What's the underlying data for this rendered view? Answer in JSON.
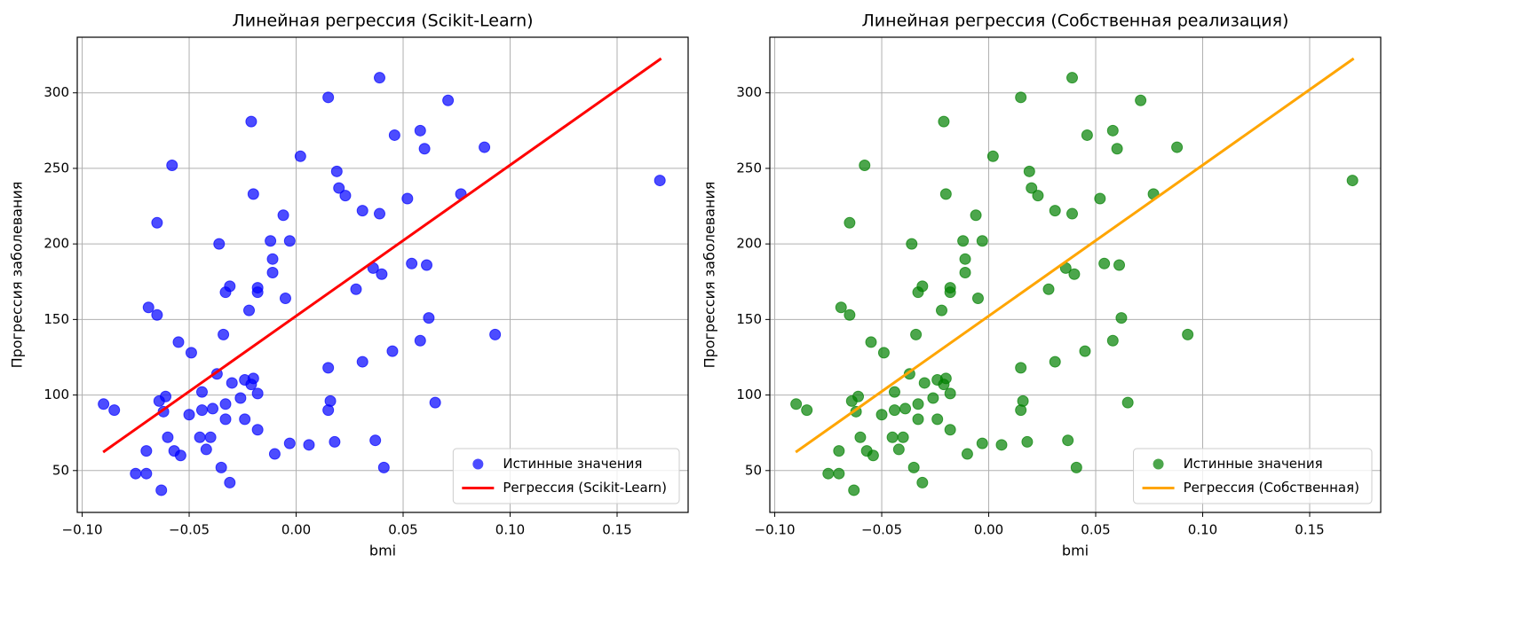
{
  "chart_data": [
    {
      "type": "scatter",
      "title": "Линейная регрессия (Scikit-Learn)",
      "x_label": "bmi",
      "y_label": "Прогрессия заболевания",
      "xlim": [
        -0.1023,
        0.1832
      ],
      "ylim": [
        22.3,
        336.8
      ],
      "xticks": [
        {
          "value": -0.1,
          "label": "−0.10"
        },
        {
          "value": -0.05,
          "label": "−0.05"
        },
        {
          "value": 0,
          "label": "0.00"
        },
        {
          "value": 0.05,
          "label": "0.05"
        },
        {
          "value": 0.1,
          "label": "0.10"
        },
        {
          "value": 0.15,
          "label": "0.15"
        }
      ],
      "yticks": [
        50,
        100,
        150,
        200,
        250,
        300
      ],
      "grid": true,
      "legend": "lower right",
      "series": [
        {
          "name": "Истинные значения",
          "type": "scatter",
          "color": "#0000ff",
          "x": [
            -0.09,
            -0.085,
            -0.075,
            -0.07,
            -0.07,
            -0.069,
            -0.065,
            -0.065,
            -0.064,
            -0.063,
            -0.061,
            -0.062,
            -0.06,
            -0.057,
            -0.058,
            -0.055,
            -0.054,
            -0.05,
            -0.049,
            -0.045,
            -0.044,
            -0.044,
            -0.042,
            -0.04,
            -0.039,
            -0.037,
            -0.036,
            -0.035,
            -0.034,
            -0.033,
            -0.033,
            -0.033,
            -0.031,
            -0.03,
            -0.031,
            -0.026,
            -0.024,
            -0.024,
            -0.021,
            -0.02,
            -0.022,
            -0.021,
            -0.02,
            -0.018,
            -0.018,
            -0.018,
            -0.018,
            -0.012,
            -0.011,
            -0.011,
            -0.01,
            -0.006,
            -0.005,
            -0.003,
            -0.003,
            0.002,
            0.006,
            0.015,
            0.015,
            0.016,
            0.015,
            0.018,
            0.019,
            0.02,
            0.023,
            0.028,
            0.031,
            0.031,
            0.036,
            0.037,
            0.039,
            0.04,
            0.039,
            0.041,
            0.045,
            0.046,
            0.052,
            0.054,
            0.058,
            0.058,
            0.06,
            0.061,
            0.062,
            0.065,
            0.071,
            0.077,
            0.088,
            0.093,
            0.17
          ],
          "values": [
            94,
            90,
            48,
            48,
            63,
            158,
            153,
            214,
            96,
            37,
            99,
            89,
            72,
            63,
            252,
            135,
            60,
            87,
            128,
            72,
            102,
            90,
            64,
            72,
            91,
            114,
            200,
            52,
            140,
            94,
            84,
            168,
            172,
            108,
            42,
            98,
            84,
            110,
            281,
            233,
            156,
            107,
            111,
            101,
            77,
            171,
            168,
            202,
            190,
            181,
            61,
            219,
            164,
            202,
            68,
            258,
            67,
            118,
            90,
            96,
            297,
            69,
            248,
            237,
            232,
            170,
            222,
            122,
            184,
            70,
            220,
            180,
            310,
            52,
            129,
            272,
            230,
            187,
            275,
            136,
            263,
            186,
            151,
            95,
            295,
            233,
            264,
            140,
            242
          ]
        },
        {
          "name": "Регрессия (Scikit-Learn)",
          "type": "line",
          "color": "#ff0000",
          "x": [
            -0.0902,
            0.1706
          ],
          "values": [
            62.2,
            322.7
          ]
        }
      ]
    },
    {
      "type": "scatter",
      "title": "Линейная регрессия (Собственная реализация)",
      "x_label": "bmi",
      "y_label": "Прогрессия заболевания",
      "xlim": [
        -0.1023,
        0.1832
      ],
      "ylim": [
        22.3,
        336.8
      ],
      "xticks": [
        {
          "value": -0.1,
          "label": "−0.10"
        },
        {
          "value": -0.05,
          "label": "−0.05"
        },
        {
          "value": 0,
          "label": "0.00"
        },
        {
          "value": 0.05,
          "label": "0.05"
        },
        {
          "value": 0.1,
          "label": "0.10"
        },
        {
          "value": 0.15,
          "label": "0.15"
        }
      ],
      "yticks": [
        50,
        100,
        150,
        200,
        250,
        300
      ],
      "grid": true,
      "legend": "lower right",
      "series": [
        {
          "name": "Истинные значения",
          "type": "scatter",
          "color": "#008000",
          "x": [
            -0.09,
            -0.085,
            -0.075,
            -0.07,
            -0.07,
            -0.069,
            -0.065,
            -0.065,
            -0.064,
            -0.063,
            -0.061,
            -0.062,
            -0.06,
            -0.057,
            -0.058,
            -0.055,
            -0.054,
            -0.05,
            -0.049,
            -0.045,
            -0.044,
            -0.044,
            -0.042,
            -0.04,
            -0.039,
            -0.037,
            -0.036,
            -0.035,
            -0.034,
            -0.033,
            -0.033,
            -0.033,
            -0.031,
            -0.03,
            -0.031,
            -0.026,
            -0.024,
            -0.024,
            -0.021,
            -0.02,
            -0.022,
            -0.021,
            -0.02,
            -0.018,
            -0.018,
            -0.018,
            -0.018,
            -0.012,
            -0.011,
            -0.011,
            -0.01,
            -0.006,
            -0.005,
            -0.003,
            -0.003,
            0.002,
            0.006,
            0.015,
            0.015,
            0.016,
            0.015,
            0.018,
            0.019,
            0.02,
            0.023,
            0.028,
            0.031,
            0.031,
            0.036,
            0.037,
            0.039,
            0.04,
            0.039,
            0.041,
            0.045,
            0.046,
            0.052,
            0.054,
            0.058,
            0.058,
            0.06,
            0.061,
            0.062,
            0.065,
            0.071,
            0.077,
            0.088,
            0.093,
            0.17
          ],
          "values": [
            94,
            90,
            48,
            48,
            63,
            158,
            153,
            214,
            96,
            37,
            99,
            89,
            72,
            63,
            252,
            135,
            60,
            87,
            128,
            72,
            102,
            90,
            64,
            72,
            91,
            114,
            200,
            52,
            140,
            94,
            84,
            168,
            172,
            108,
            42,
            98,
            84,
            110,
            281,
            233,
            156,
            107,
            111,
            101,
            77,
            171,
            168,
            202,
            190,
            181,
            61,
            219,
            164,
            202,
            68,
            258,
            67,
            118,
            90,
            96,
            297,
            69,
            248,
            237,
            232,
            170,
            222,
            122,
            184,
            70,
            220,
            180,
            310,
            52,
            129,
            272,
            230,
            187,
            275,
            136,
            263,
            186,
            151,
            95,
            295,
            233,
            264,
            140,
            242
          ]
        },
        {
          "name": "Регрессия (Собственная)",
          "type": "line",
          "color": "#ffa500",
          "x": [
            -0.0902,
            0.1706
          ],
          "values": [
            62.2,
            322.7
          ]
        }
      ]
    }
  ]
}
